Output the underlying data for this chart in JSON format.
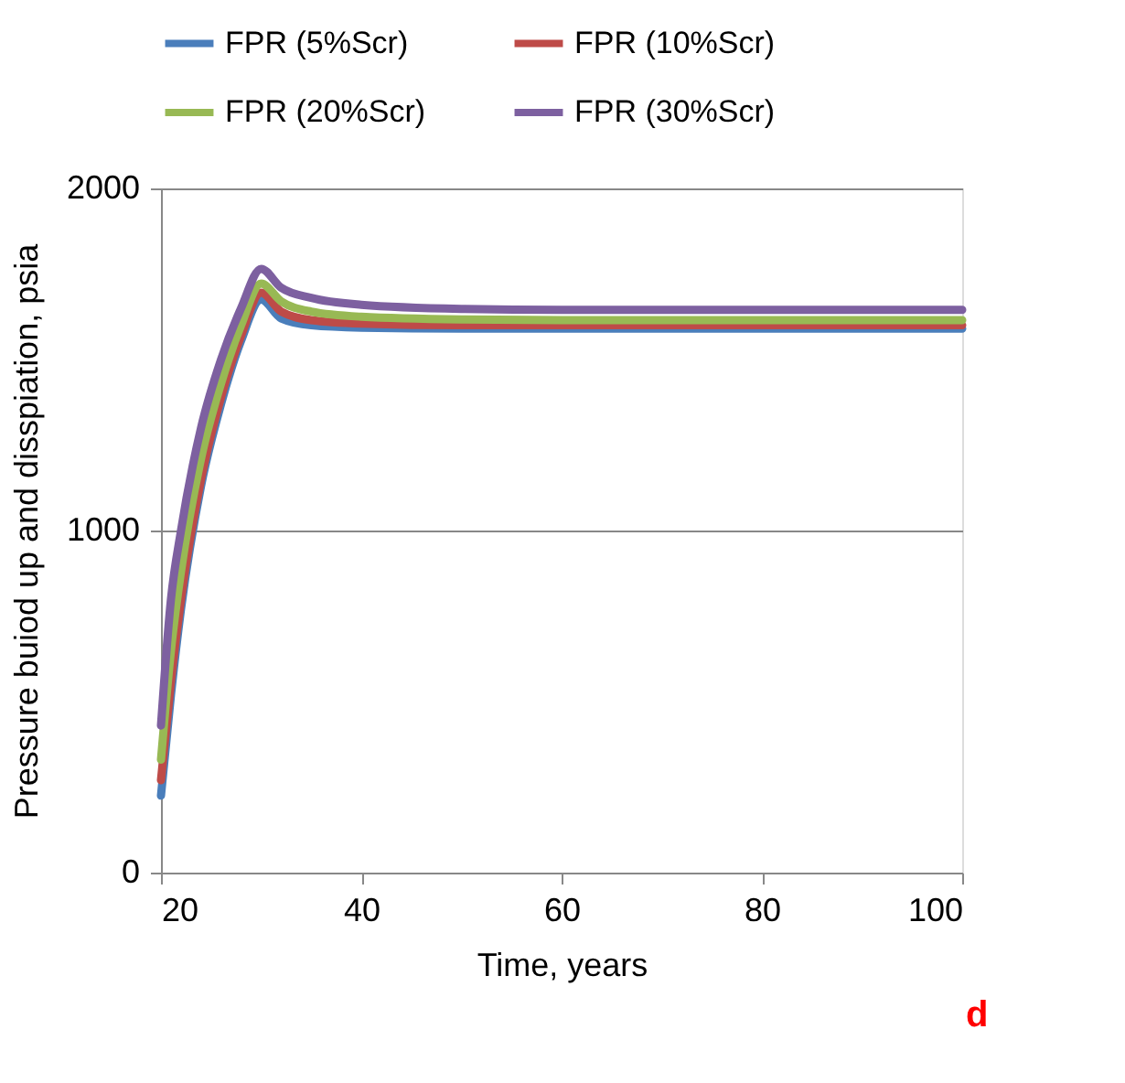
{
  "chart_data": {
    "type": "line",
    "xlabel": "Time, years",
    "ylabel": "Pressure buiod up and disspiation, psia",
    "x": [
      20,
      21,
      22,
      24,
      26,
      28,
      30,
      32,
      35,
      40,
      50,
      60,
      80,
      100
    ],
    "series": [
      {
        "name": "FPR (5%Scr)",
        "color": "#4a7ebb",
        "values": [
          225,
          520,
          770,
          1130,
          1370,
          1555,
          1675,
          1620,
          1600,
          1593,
          1590,
          1590,
          1590,
          1590
        ]
      },
      {
        "name": "FPR (10%Scr)",
        "color": "#be4b48",
        "values": [
          270,
          560,
          800,
          1150,
          1390,
          1570,
          1695,
          1640,
          1615,
          1605,
          1600,
          1600,
          1600,
          1600
        ]
      },
      {
        "name": "FPR (20%Scr)",
        "color": "#98b954",
        "values": [
          330,
          650,
          880,
          1210,
          1430,
          1600,
          1722,
          1670,
          1640,
          1625,
          1617,
          1615,
          1615,
          1615
        ]
      },
      {
        "name": "FPR (30%Scr)",
        "color": "#7d60a0",
        "values": [
          430,
          800,
          1000,
          1300,
          1500,
          1650,
          1765,
          1710,
          1680,
          1660,
          1648,
          1645,
          1645,
          1645
        ]
      }
    ],
    "xlim": [
      20,
      100
    ],
    "xticks": [
      20,
      40,
      60,
      80,
      100
    ],
    "ylim": [
      0,
      2000
    ],
    "yticks": [
      0,
      1000,
      2000
    ],
    "grid": "y",
    "legend": "top",
    "marker": "none",
    "line_style": "solid",
    "annotations": [
      "d"
    ]
  }
}
